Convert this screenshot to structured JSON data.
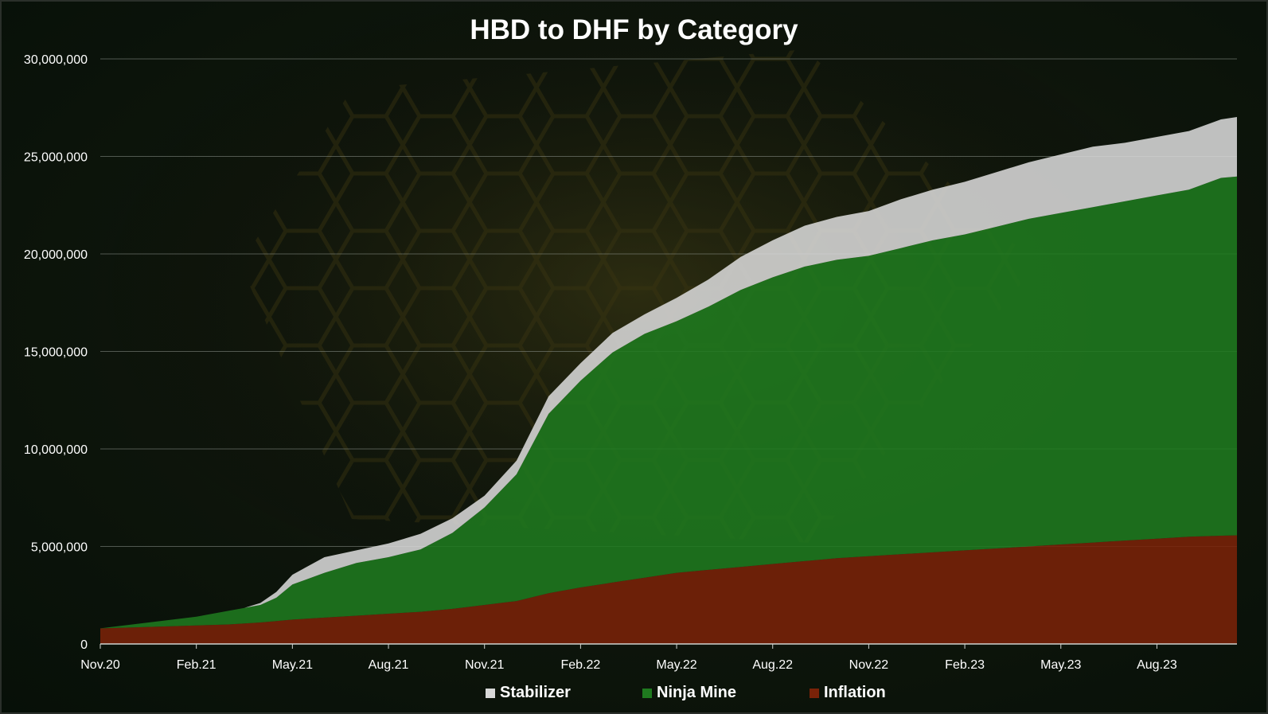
{
  "chart_data": {
    "type": "area",
    "stacked": true,
    "title": "HBD to DHF by Category",
    "xlabel": "",
    "ylabel": "",
    "ylim": [
      0,
      30000000
    ],
    "y_ticks": [
      0,
      5000000,
      10000000,
      15000000,
      20000000,
      25000000,
      30000000
    ],
    "y_tick_labels": [
      "0",
      "5,000,000",
      "10,000,000",
      "15,000,000",
      "20,000,000",
      "25,000,000",
      "30,000,000"
    ],
    "x_tick_labels": [
      "Nov.20",
      "Feb.21",
      "May.21",
      "Aug.21",
      "Nov.21",
      "Feb.22",
      "May.22",
      "Aug.22",
      "Nov.22",
      "Feb.23",
      "May.23",
      "Aug.23"
    ],
    "grid": true,
    "legend": "bottom",
    "x": [
      0,
      1,
      2,
      3,
      4,
      4.5,
      5,
      5.5,
      6,
      7,
      8,
      9,
      10,
      11,
      12,
      13,
      14,
      15,
      16,
      17,
      18,
      19,
      20,
      21,
      22,
      23,
      24,
      25,
      26,
      27,
      28,
      29,
      30,
      31,
      32,
      33,
      34,
      35,
      35.5
    ],
    "series": [
      {
        "name": "Inflation",
        "color": "#7a2208",
        "values": [
          800000,
          850000,
          900000,
          950000,
          1000000,
          1050000,
          1100000,
          1170000,
          1250000,
          1350000,
          1450000,
          1550000,
          1650000,
          1800000,
          2000000,
          2200000,
          2600000,
          2900000,
          3150000,
          3400000,
          3650000,
          3800000,
          3950000,
          4100000,
          4250000,
          4400000,
          4500000,
          4600000,
          4700000,
          4800000,
          4900000,
          5000000,
          5100000,
          5200000,
          5300000,
          5400000,
          5500000,
          5550000,
          5570000
        ]
      },
      {
        "name": "Ninja Mine",
        "color": "#1f7a1f",
        "values": [
          0,
          150000,
          300000,
          450000,
          700000,
          800000,
          900000,
          1200000,
          1800000,
          2300000,
          2700000,
          2900000,
          3200000,
          3900000,
          5000000,
          6500000,
          9200000,
          10600000,
          11800000,
          12500000,
          12900000,
          13500000,
          14200000,
          14700000,
          15100000,
          15300000,
          15400000,
          15700000,
          16000000,
          16200000,
          16500000,
          16800000,
          17000000,
          17200000,
          17400000,
          17600000,
          17800000,
          18350000,
          18400000
        ]
      },
      {
        "name": "Stabilizer",
        "color": "#d8d8d8",
        "values": [
          0,
          0,
          0,
          0,
          0,
          0,
          100000,
          300000,
          500000,
          800000,
          650000,
          700000,
          800000,
          750000,
          600000,
          700000,
          900000,
          900000,
          1000000,
          1000000,
          1200000,
          1400000,
          1700000,
          1900000,
          2100000,
          2200000,
          2300000,
          2500000,
          2600000,
          2700000,
          2800000,
          2900000,
          3000000,
          3100000,
          3000000,
          3000000,
          3000000,
          3000000,
          3050000
        ]
      }
    ]
  },
  "legend": {
    "items": [
      {
        "label": "Stabilizer",
        "color": "#d8d8d8"
      },
      {
        "label": "Ninja Mine",
        "color": "#1f7a1f"
      },
      {
        "label": "Inflation",
        "color": "#7a2208"
      }
    ]
  }
}
